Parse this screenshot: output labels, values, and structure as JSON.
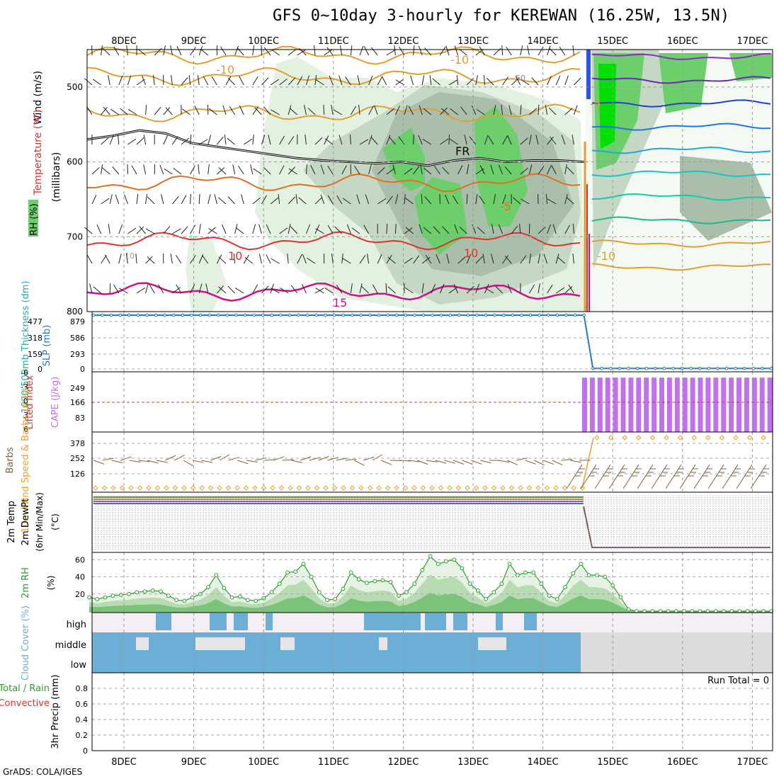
{
  "title": "GFS 0~10day 3-hourly for KEREWAN (16.25W, 13.5N)",
  "footer": "GrADS: COLA/IGES",
  "date_labels": [
    "8DEC",
    "9DEC",
    "10DEC",
    "11DEC",
    "12DEC",
    "13DEC",
    "14DEC",
    "15DEC",
    "16DEC",
    "17DEC"
  ],
  "colors": {
    "rh_light": "#e3f2e0",
    "rh_mid": "#c4d8c4",
    "rh_dark": "#a9bfa9",
    "rh_green": "#6ccf6c",
    "rh_bright": "#00e000",
    "temp_warm": "#e0a030",
    "temp_orange": "#e07020",
    "temp_red": "#e03030",
    "temp_magenta": "#d0108a",
    "cape": "#c070f0",
    "cloud": "#6baed6",
    "cloud_bg": "#f3eff5",
    "slp": "#1e78d0",
    "wind_speed": "#f0a020",
    "rh2m": "#2ca02c",
    "precip_total": "#2ca02c",
    "precip_conv": "#e03030"
  },
  "chart_data": [
    {
      "type": "area",
      "panel": "upper_air",
      "ylabel_parts": [
        "Wind (m/s)",
        "Temperature (°C)",
        "RH (%)"
      ],
      "yunit": "(millibars)",
      "y_ticks": [
        500,
        600,
        700,
        800
      ],
      "ylim": [
        800,
        450
      ],
      "contour_labels": [
        "-10",
        "-10",
        "50",
        "-5",
        "FR",
        "-5",
        "10",
        "10",
        "15",
        "10",
        "-10"
      ],
      "freezing_level_mb": [
        570,
        565,
        558,
        562,
        575,
        580,
        585,
        590,
        595,
        598,
        600,
        602,
        600,
        605,
        598,
        595,
        600,
        598,
        598,
        600
      ]
    },
    {
      "type": "line",
      "panel": "thickness_slp",
      "ylabel_left": "1000-500mb Thickness (dm)",
      "ylabel_right": "SLP (mb)",
      "left_ticks": [
        "477",
        "318",
        "159",
        "0"
      ],
      "right_ticks": [
        "879",
        "586",
        "293",
        "0"
      ],
      "series": [
        {
          "values": [
            1010,
            1011,
            1010,
            1011,
            1010,
            1011,
            1010,
            1011,
            1010,
            1011,
            1010,
            1011,
            1010,
            1011,
            1010,
            1011,
            1010,
            1011,
            1010,
            1011,
            1010,
            1011,
            1010,
            1011,
            1010,
            1011,
            1010,
            1011,
            1010,
            1011,
            1010,
            1011,
            1010,
            1011,
            1010,
            1011,
            1010,
            1011,
            1010,
            1011,
            1010,
            1011,
            1010,
            1011,
            1010,
            1011,
            1010,
            1011,
            1010,
            1011,
            1010,
            1011,
            1010,
            1011,
            1010,
            1011,
            10,
            10,
            10,
            10,
            10,
            10,
            10,
            10,
            10,
            10,
            10,
            10,
            10,
            10,
            10,
            10,
            10,
            10,
            10,
            10,
            10
          ]
        }
      ]
    },
    {
      "type": "bar",
      "panel": "cape_li",
      "ylabel_left": "Lifted Index",
      "ylabel_right": "CAPE (J/kg)",
      "left_ticks": [
        "-6",
        "-3",
        "0",
        "3",
        "6"
      ],
      "right_ticks": [
        "249",
        "166",
        "83"
      ],
      "cape_values": [
        320,
        320,
        320,
        320,
        320,
        320,
        320,
        320,
        320,
        320,
        320,
        320,
        320,
        320,
        320,
        320,
        320,
        320,
        320,
        320,
        320,
        320,
        320,
        320,
        320
      ]
    },
    {
      "type": "line",
      "panel": "wind10m",
      "ylabel": "10m Wind Speed & Barbs (m/s)",
      "y_ticks": [
        "378",
        "252",
        "126"
      ],
      "speed_before": [
        15,
        15,
        15,
        15,
        15,
        15,
        15,
        15,
        15,
        15,
        15,
        15,
        15,
        15,
        15,
        15,
        15,
        15,
        15,
        15,
        15,
        15,
        15,
        15,
        15,
        15,
        15,
        15,
        15,
        15,
        15,
        15,
        15,
        15,
        15,
        15,
        15,
        15,
        15,
        15,
        15,
        15,
        15,
        15,
        15,
        15,
        15,
        15,
        15,
        15,
        15,
        15,
        15,
        15,
        15,
        15
      ],
      "speed_after": [
        420,
        420,
        420,
        420,
        420,
        420,
        420,
        420,
        420,
        420,
        420,
        420,
        420
      ]
    },
    {
      "type": "line",
      "panel": "temp2m",
      "ylabel": "2m Temp 2m DewPt (6hr Min/Max) (°C)",
      "unit": "(°C)"
    },
    {
      "type": "area",
      "panel": "rh2m",
      "ylabel": "2m RH",
      "unit": "(%)",
      "y_ticks": [
        "60",
        "40",
        "20"
      ],
      "ylim": [
        0,
        66
      ],
      "values": [
        16,
        14,
        16,
        18,
        19,
        20,
        22,
        23,
        24,
        23,
        18,
        13,
        12,
        16,
        20,
        28,
        42,
        27,
        16,
        17,
        13,
        12,
        15,
        22,
        32,
        45,
        46,
        55,
        40,
        22,
        13,
        14,
        26,
        45,
        37,
        33,
        35,
        36,
        34,
        18,
        22,
        32,
        48,
        64,
        55,
        58,
        60,
        50,
        32,
        24,
        14,
        22,
        32,
        55,
        42,
        45,
        45,
        32,
        18,
        14,
        28,
        44,
        55,
        42,
        42,
        40,
        30,
        16,
        2,
        0,
        0,
        0,
        0,
        0,
        0,
        0,
        0,
        0,
        0,
        0,
        0,
        0,
        0,
        0,
        0,
        0,
        0
      ]
    },
    {
      "type": "bar",
      "panel": "cloud",
      "ylabel": "Cloud Cover (%)",
      "levels": [
        "high",
        "middle",
        "low"
      ]
    },
    {
      "type": "bar",
      "panel": "precip",
      "ylabel": "3hr Precip (mm)",
      "legend": [
        "Total / Rain",
        "Convective"
      ],
      "run_total_label": "Run Total = 0",
      "y_ticks": [
        "0.8",
        "0.6",
        "0.4",
        "0.2",
        "0"
      ],
      "ylim": [
        0,
        1
      ],
      "values": []
    }
  ]
}
